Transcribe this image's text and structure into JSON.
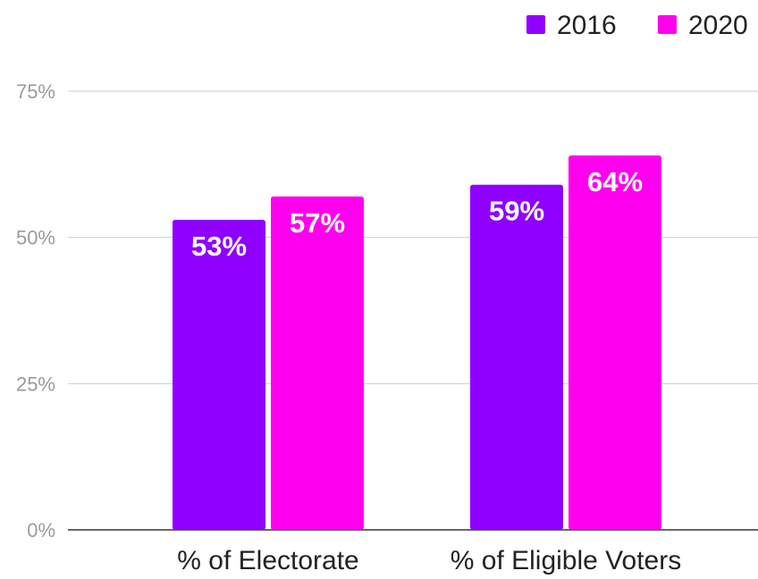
{
  "chart_data": {
    "type": "bar",
    "title": "",
    "xlabel": "",
    "ylabel": "",
    "categories": [
      "% of Electorate",
      "% of Eligible Voters"
    ],
    "series": [
      {
        "name": "2016",
        "color": "#8f00ff",
        "values": [
          53,
          59
        ],
        "labels": [
          "53%",
          "59%"
        ]
      },
      {
        "name": "2020",
        "color": "#ff00ee",
        "values": [
          57,
          64
        ],
        "labels": [
          "57%",
          "64%"
        ]
      }
    ],
    "ylim": [
      0,
      75
    ],
    "yticks": [
      0,
      25,
      50,
      75
    ],
    "ytick_labels": [
      "0%",
      "25%",
      "50%",
      "75%"
    ],
    "grid": true,
    "legend_position": "top-right"
  }
}
